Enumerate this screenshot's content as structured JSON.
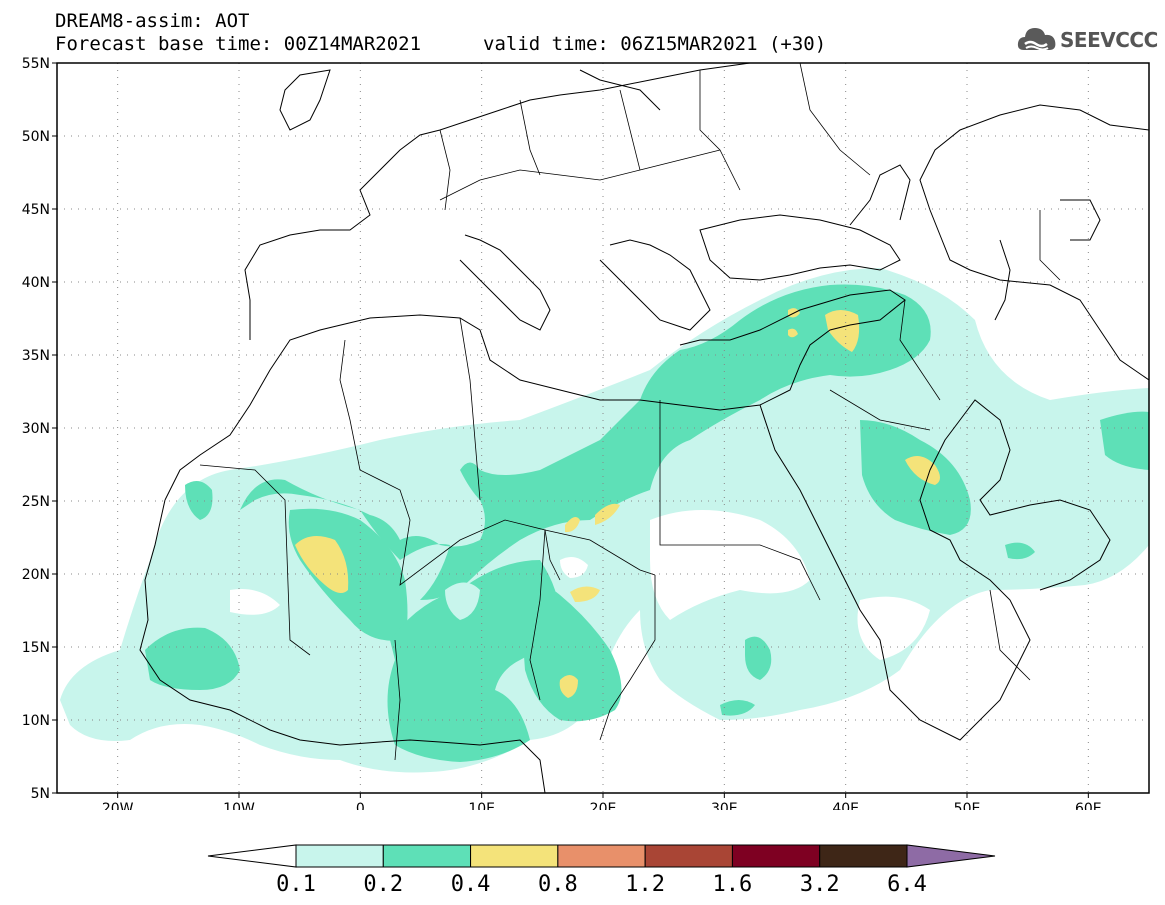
{
  "header": {
    "title": "DREAM8-assim: AOT",
    "base_time": "Forecast base time: 00Z14MAR2021",
    "valid_time": "valid time: 06Z15MAR2021 (+30)",
    "logo_text": "SEEVCCC",
    "logo_icon": "cloud-icon"
  },
  "map": {
    "lat_labels": [
      "55N",
      "50N",
      "45N",
      "40N",
      "35N",
      "30N",
      "25N",
      "20N",
      "15N",
      "10N",
      "5N"
    ],
    "lat_values": [
      55,
      50,
      45,
      40,
      35,
      30,
      25,
      20,
      15,
      10,
      5
    ],
    "lon_labels": [
      "20W",
      "10W",
      "0",
      "10E",
      "20E",
      "30E",
      "40E",
      "50E",
      "60E"
    ],
    "lon_values": [
      -20,
      -10,
      0,
      10,
      20,
      30,
      40,
      50,
      60
    ],
    "lat_range": [
      5,
      55
    ],
    "lon_range": [
      -25,
      65
    ],
    "gridlines": "dotted"
  },
  "colorbar": {
    "labels": [
      "0.1",
      "0.2",
      "0.4",
      "0.8",
      "1.2",
      "1.6",
      "3.2",
      "6.4"
    ],
    "colors": [
      "#ffffff",
      "#c8f5ec",
      "#5ee0b7",
      "#f4e37a",
      "#e8906a",
      "#a94535",
      "#7e0022",
      "#3e2617",
      "#8e6ba5"
    ]
  }
}
